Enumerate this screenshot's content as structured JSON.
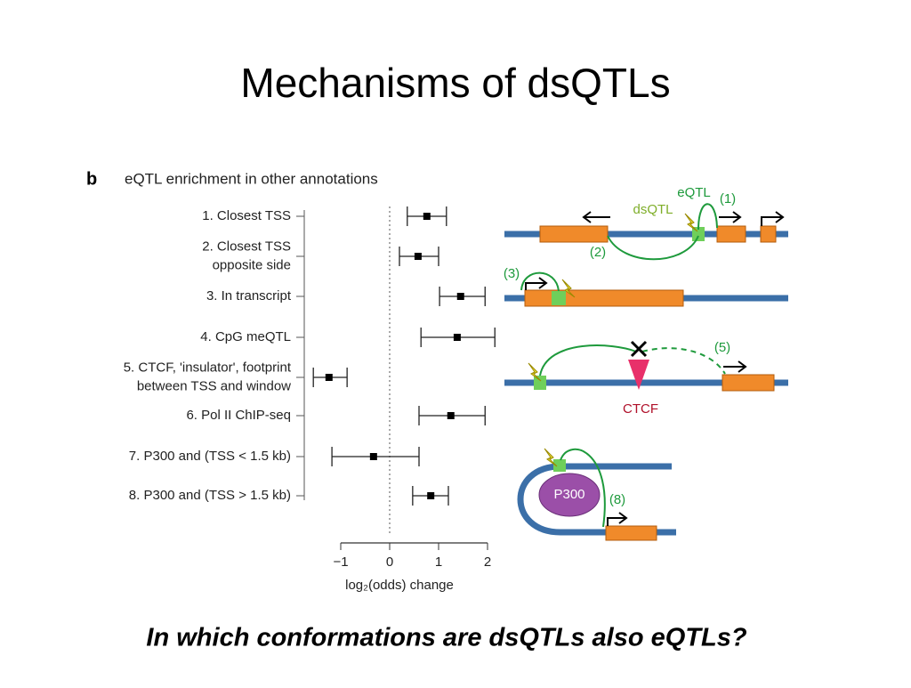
{
  "slide": {
    "title": "Mechanisms of dsQTLs",
    "caption": "In which conformations are dsQTLs also eQTLs?"
  },
  "chart_data": {
    "type": "forest",
    "panel": "b",
    "title": "eQTL enrichment in other annotations",
    "categories": [
      [
        "1. Closest TSS"
      ],
      [
        "2. Closest TSS",
        "opposite side"
      ],
      [
        "3. In transcript"
      ],
      [
        "4. CpG meQTL"
      ],
      [
        "5. CTCF, 'insulator', footprint",
        "between TSS and window"
      ],
      [
        "6. Pol II ChIP-seq"
      ],
      [
        "7. P300 and (TSS < 1.5 kb)"
      ],
      [
        "8. P300 and (TSS > 1.5 kb)"
      ]
    ],
    "values": [
      0.76,
      0.58,
      1.45,
      1.38,
      -1.24,
      1.25,
      -0.33,
      0.84
    ],
    "lower": [
      0.36,
      0.2,
      1.02,
      0.64,
      -1.56,
      0.6,
      -1.18,
      0.47
    ],
    "upper": [
      1.16,
      1.0,
      1.95,
      2.15,
      -0.87,
      1.95,
      0.6,
      1.2
    ],
    "color": "#000000",
    "xlabel": "log₂(odds) change",
    "xlim": [
      -1,
      2
    ],
    "xticks": [
      {
        "value": -1,
        "label": "−1"
      },
      0,
      1,
      2
    ]
  },
  "diagram": {
    "labels": [
      "eQTL",
      "(1)",
      "dsQTL",
      "(2)",
      "(3)",
      "(5)",
      "CTCF",
      "P300",
      "(8)"
    ]
  }
}
